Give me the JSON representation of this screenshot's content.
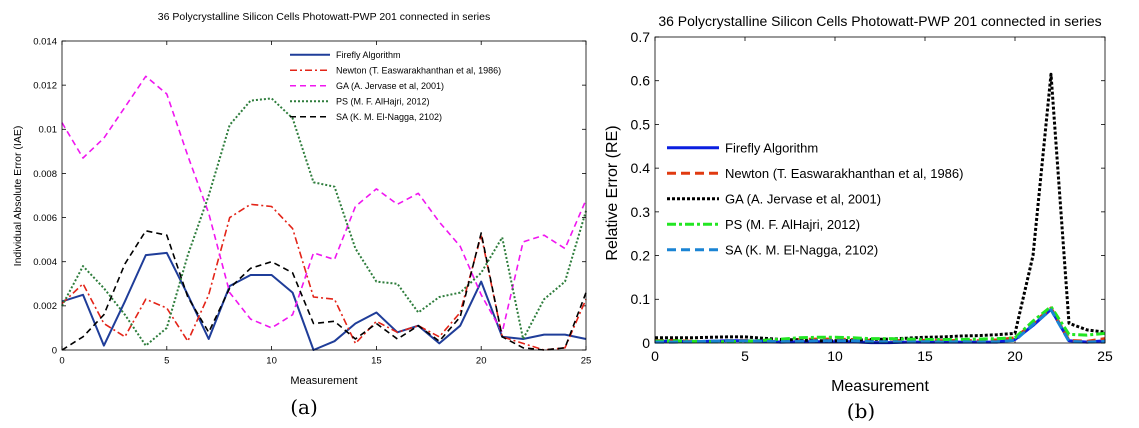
{
  "chart_data": [
    {
      "panel_label": "(a)",
      "type": "line",
      "title": "36 Polycrystalline Silicon Cells Photowatt-PWP 201 connected in series",
      "xlabel": "Measurement",
      "ylabel": "Individual Absolute Error (IAE)",
      "xlim": [
        0,
        25
      ],
      "ylim": [
        0,
        0.014
      ],
      "xticks": [
        "0",
        "5",
        "10",
        "15",
        "20",
        "25"
      ],
      "yticks": [
        "0",
        "0.002",
        "0.004",
        "0.006",
        "0.008",
        "0.01",
        "0.012",
        "0.014"
      ],
      "grid": false,
      "legend_position": "top-right",
      "x": [
        0,
        1,
        2,
        3,
        4,
        5,
        6,
        7,
        8,
        9,
        10,
        11,
        12,
        13,
        14,
        15,
        16,
        17,
        18,
        19,
        20,
        21,
        22,
        23,
        24,
        25
      ],
      "series": [
        {
          "name": "Firefly Algorithm",
          "color": "#1f3d99",
          "dash": "solid",
          "values": [
            0.0022,
            0.0025,
            0.0002,
            0.0022,
            0.0043,
            0.0044,
            0.0025,
            0.0005,
            0.0029,
            0.0034,
            0.0034,
            0.0026,
            0.0,
            0.0004,
            0.0012,
            0.0017,
            0.0008,
            0.0011,
            0.0003,
            0.0011,
            0.0031,
            0.0006,
            0.0005,
            0.0007,
            0.0007,
            0.0005
          ]
        },
        {
          "name": "Newton (T. Easwarakhanthan et al, 1986)",
          "color": "#e32418",
          "dash": "dashdot",
          "values": [
            0.0021,
            0.003,
            0.0012,
            0.0006,
            0.0023,
            0.0019,
            0.0004,
            0.0025,
            0.006,
            0.0066,
            0.0065,
            0.0055,
            0.0024,
            0.0023,
            0.0003,
            0.0013,
            0.0008,
            0.0011,
            0.0006,
            0.0017,
            0.0052,
            0.0006,
            0.0003,
            0.0,
            0.0001,
            0.0023
          ]
        },
        {
          "name": "GA (A. Jervase et al, 2001)",
          "color": "#f016f0",
          "dash": "dash",
          "values": [
            0.0103,
            0.0087,
            0.0096,
            0.011,
            0.0124,
            0.0116,
            0.0088,
            0.0062,
            0.0026,
            0.0014,
            0.001,
            0.0016,
            0.0044,
            0.0041,
            0.0065,
            0.0073,
            0.0066,
            0.0071,
            0.0058,
            0.0047,
            0.0025,
            0.0008,
            0.0049,
            0.0052,
            0.0046,
            0.0068
          ]
        },
        {
          "name": "PS (M. F. AlHajri, 2012)",
          "color": "#2e7d3c",
          "dash": "dot",
          "values": [
            0.002,
            0.0038,
            0.0028,
            0.0016,
            0.0002,
            0.001,
            0.0043,
            0.007,
            0.0102,
            0.0113,
            0.0114,
            0.0105,
            0.0076,
            0.0074,
            0.0046,
            0.0031,
            0.003,
            0.0017,
            0.0024,
            0.0026,
            0.0035,
            0.0051,
            0.0005,
            0.0023,
            0.0031,
            0.0063
          ]
        },
        {
          "name": "SA (K. M. El-Nagga, 2102)",
          "color": "#000000",
          "dash": "dash",
          "values": [
            0.0,
            0.0006,
            0.0016,
            0.0039,
            0.0054,
            0.0052,
            0.0024,
            0.0008,
            0.0028,
            0.0037,
            0.004,
            0.0035,
            0.0012,
            0.0013,
            0.0005,
            0.0012,
            0.0005,
            0.0011,
            0.0004,
            0.0015,
            0.0053,
            0.0006,
            0.0001,
            0.0,
            0.0001,
            0.0026
          ]
        }
      ]
    },
    {
      "panel_label": "(b)",
      "type": "line",
      "title": "36 Polycrystalline Silicon Cells Photowatt-PWP 201 connected in series",
      "xlabel": "Measurement",
      "ylabel": "Relative Error (RE)",
      "xlim": [
        0,
        25
      ],
      "ylim": [
        0,
        0.7
      ],
      "xticks": [
        "0",
        "5",
        "10",
        "15",
        "20",
        "25"
      ],
      "yticks": [
        "0",
        "0.1",
        "0.2",
        "0.3",
        "0.4",
        "0.5",
        "0.6",
        "0.7"
      ],
      "grid": false,
      "legend_position": "left-middle",
      "x": [
        0,
        1,
        2,
        3,
        4,
        5,
        6,
        7,
        8,
        9,
        10,
        11,
        12,
        13,
        14,
        15,
        16,
        17,
        18,
        19,
        20,
        21,
        22,
        23,
        24,
        25
      ],
      "series": [
        {
          "name": "Firefly Algorithm",
          "color": "#0a1fe0",
          "dash": "solid",
          "values": [
            0.004,
            0.004,
            0.003,
            0.004,
            0.005,
            0.005,
            0.004,
            0.002,
            0.003,
            0.003,
            0.003,
            0.003,
            0.001,
            0.001,
            0.002,
            0.002,
            0.002,
            0.002,
            0.002,
            0.002,
            0.008,
            0.04,
            0.077,
            0.005,
            0.002,
            0.005
          ]
        },
        {
          "name": "Newton (T. Easwarakhanthan et al, 1986)",
          "color": "#e03a10",
          "dash": "dash",
          "values": [
            0.005,
            0.006,
            0.004,
            0.003,
            0.005,
            0.006,
            0.003,
            0.004,
            0.008,
            0.009,
            0.009,
            0.008,
            0.006,
            0.006,
            0.005,
            0.006,
            0.005,
            0.006,
            0.005,
            0.007,
            0.012,
            0.045,
            0.08,
            0.006,
            0.004,
            0.01
          ]
        },
        {
          "name": "GA (A. Jervase et al, 2001)",
          "color": "#000000",
          "dash": "dot",
          "values": [
            0.012,
            0.012,
            0.012,
            0.013,
            0.014,
            0.014,
            0.011,
            0.008,
            0.007,
            0.005,
            0.005,
            0.006,
            0.008,
            0.009,
            0.011,
            0.013,
            0.014,
            0.016,
            0.017,
            0.019,
            0.022,
            0.2,
            0.615,
            0.045,
            0.03,
            0.025
          ]
        },
        {
          "name": "PS (M. F. AlHajri, 2012)",
          "color": "#22e622",
          "dash": "dashdot",
          "values": [
            0.004,
            0.005,
            0.004,
            0.003,
            0.003,
            0.004,
            0.006,
            0.009,
            0.012,
            0.013,
            0.013,
            0.012,
            0.01,
            0.01,
            0.009,
            0.008,
            0.008,
            0.008,
            0.009,
            0.01,
            0.012,
            0.05,
            0.083,
            0.02,
            0.018,
            0.022
          ]
        },
        {
          "name": "SA (K. M. El-Nagga, 2102)",
          "color": "#1a84d4",
          "dash": "dash",
          "values": [
            0.002,
            0.002,
            0.003,
            0.004,
            0.005,
            0.005,
            0.004,
            0.003,
            0.004,
            0.005,
            0.005,
            0.005,
            0.003,
            0.003,
            0.002,
            0.003,
            0.002,
            0.003,
            0.002,
            0.003,
            0.006,
            0.042,
            0.076,
            0.004,
            0.002,
            0.004
          ]
        }
      ]
    }
  ]
}
